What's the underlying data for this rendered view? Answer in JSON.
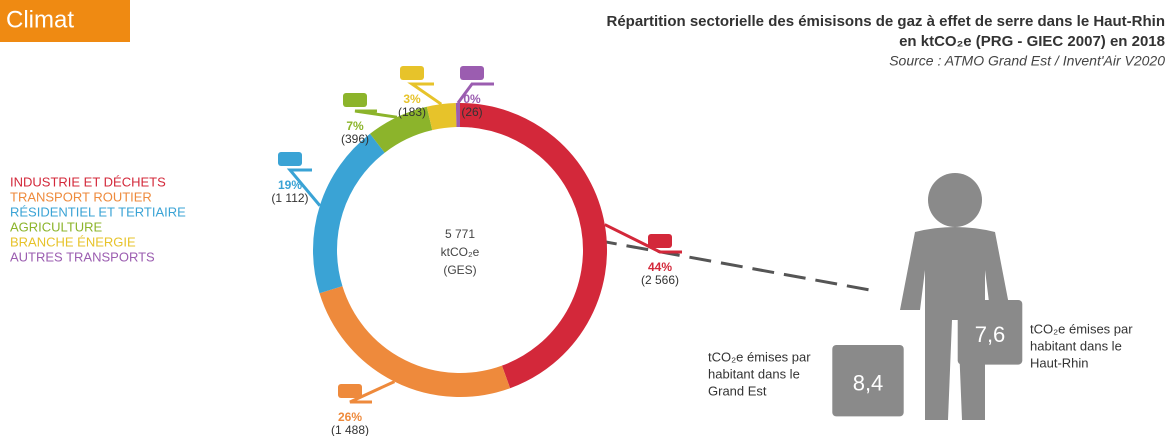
{
  "tag": "Climat",
  "chart_data": {
    "type": "donut",
    "title": [
      "Répartition sectorielle des émisisons de gaz à effet de serre dans le Haut-Rhin",
      "en ktCO₂e (PRG - GIEC 2007) en 2018"
    ],
    "source": "Source : ATMO Grand Est / Invent'Air V2020",
    "categories": [
      "INDUSTRIE ET DÉCHETS",
      "TRANSPORT ROUTIER",
      "RÉSIDENTIEL ET TERTIAIRE",
      "AGRICULTURE",
      "BRANCHE ÉNERGIE",
      "AUTRES TRANSPORTS"
    ],
    "colors": [
      "#d3283a",
      "#ee8a3c",
      "#3aa3d5",
      "#8cb42b",
      "#e7c32a",
      "#9b5db0"
    ],
    "values": [
      2566,
      1488,
      1112,
      396,
      183,
      26
    ],
    "value_labels": [
      "(2 566)",
      "(1 488)",
      "(1 112)",
      "(396)",
      "(183)",
      "(26)"
    ],
    "shares": [
      44,
      26,
      19,
      7,
      3,
      0
    ],
    "share_labels": [
      "44%",
      "26%",
      "19%",
      "7%",
      "3%",
      "0%"
    ],
    "total": 5771,
    "total_label": "5 771",
    "center_text": [
      "ktCO₂e",
      "(GES)"
    ]
  },
  "per_capita": [
    {
      "value": 8.4,
      "label": "8,4",
      "caption": [
        "tCO₂e émises par",
        "habitant dans le",
        "Grand Est"
      ]
    },
    {
      "value": 7.6,
      "label": "7,6",
      "caption": [
        "tCO₂e émises par",
        "habitant dans le",
        "Haut-Rhin"
      ]
    }
  ]
}
